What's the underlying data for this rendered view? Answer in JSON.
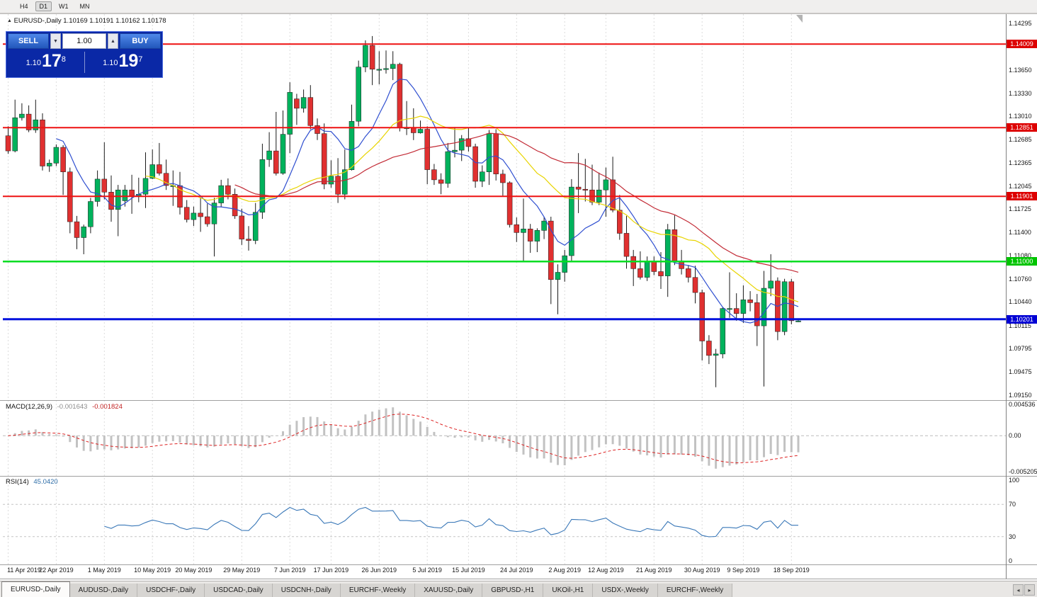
{
  "toolbar": {
    "timeframes": [
      {
        "label": "H4",
        "active": false
      },
      {
        "label": "D1",
        "active": true
      },
      {
        "label": "W1",
        "active": false
      },
      {
        "label": "MN",
        "active": false
      }
    ]
  },
  "chart_header": {
    "title": "EURUSD-,Daily",
    "ohlc": "1.10169 1.10191 1.10162 1.10178"
  },
  "trade_panel": {
    "sell_label": "SELL",
    "buy_label": "BUY",
    "volume": "1.00",
    "spin_down": "▼",
    "spin_up": "▲",
    "sell_price": {
      "prefix": "1.10",
      "big": "17",
      "sup": "8"
    },
    "buy_price": {
      "prefix": "1.10",
      "big": "19",
      "sup": "7"
    }
  },
  "price_axis": {
    "ticks": [
      "1.14295",
      "1.13650",
      "1.13330",
      "1.13010",
      "1.12685",
      "1.12365",
      "1.12045",
      "1.11725",
      "1.11400",
      "1.11080",
      "1.10760",
      "1.10440",
      "1.10115",
      "1.09795",
      "1.09475",
      "1.09150"
    ],
    "badges": [
      {
        "price": "1.14009",
        "color": "#dd0000"
      },
      {
        "price": "1.12851",
        "color": "#dd0000"
      },
      {
        "price": "1.11901",
        "color": "#dd0000"
      },
      {
        "price": "1.11000",
        "color": "#00c400"
      },
      {
        "price": "1.10201",
        "color": "#0000d4"
      }
    ]
  },
  "macd_panel": {
    "name": "MACD(12,26,9)",
    "value1": "-0.001643",
    "value2": "-0.001824",
    "axis": [
      "0.004536",
      "0.00",
      "-0.005205"
    ],
    "range": [
      -0.005205,
      0.004536
    ]
  },
  "rsi_panel": {
    "name": "RSI(14)",
    "value": "45.0420",
    "axis": [
      "100",
      "70",
      "30",
      "0"
    ],
    "levels": [
      70,
      30
    ]
  },
  "tabs": [
    {
      "label": "EURUSD-,Daily",
      "active": true
    },
    {
      "label": "AUDUSD-,Daily",
      "active": false
    },
    {
      "label": "USDCHF-,Daily",
      "active": false
    },
    {
      "label": "USDCAD-,Daily",
      "active": false
    },
    {
      "label": "USDCNH-,Daily",
      "active": false
    },
    {
      "label": "EURCHF-,Weekly",
      "active": false
    },
    {
      "label": "XAUUSD-,Daily",
      "active": false
    },
    {
      "label": "GBPUSD-,H1",
      "active": false
    },
    {
      "label": "UKOil-,H1",
      "active": false
    },
    {
      "label": "USDX-,Weekly",
      "active": false
    },
    {
      "label": "EURCHF-,Weekly",
      "active": false
    }
  ],
  "chart_data": {
    "type": "candlestick",
    "symbol": "EURUSD-",
    "timeframe": "Daily",
    "ylim": [
      1.0915,
      1.14295
    ],
    "colors": {
      "bull": "#00b25c",
      "bear": "#e03030",
      "wick": "#1a1a1a",
      "macd_bar": "#c2c2c2",
      "macd_signal": "#dd2222",
      "rsi_line": "#3a78b8"
    },
    "hlines": [
      {
        "price": 1.14009,
        "color": "#ee1111",
        "width": 2
      },
      {
        "price": 1.12851,
        "color": "#ee1111",
        "width": 2
      },
      {
        "price": 1.11901,
        "color": "#ee1111",
        "width": 2
      },
      {
        "price": 1.11,
        "color": "#00dd22",
        "width": 2.5
      },
      {
        "price": 1.10201,
        "color": "#0011dd",
        "width": 3
      }
    ],
    "moving_averages": [
      {
        "period": 8,
        "color": "#2f4fd0"
      },
      {
        "period": 21,
        "color": "#e8d400"
      },
      {
        "period": 34,
        "color": "#c22a35"
      }
    ],
    "xlabels": [
      {
        "index": 0,
        "label": "11 Apr 2019"
      },
      {
        "index": 7,
        "label": "22 Apr 2019"
      },
      {
        "index": 14,
        "label": "1 May 2019"
      },
      {
        "index": 21,
        "label": "10 May 2019"
      },
      {
        "index": 27,
        "label": "20 May 2019"
      },
      {
        "index": 34,
        "label": "29 May 2019"
      },
      {
        "index": 41,
        "label": "7 Jun 2019"
      },
      {
        "index": 47,
        "label": "17 Jun 2019"
      },
      {
        "index": 54,
        "label": "26 Jun 2019"
      },
      {
        "index": 61,
        "label": "5 Jul 2019"
      },
      {
        "index": 67,
        "label": "15 Jul 2019"
      },
      {
        "index": 74,
        "label": "24 Jul 2019"
      },
      {
        "index": 81,
        "label": "2 Aug 2019"
      },
      {
        "index": 87,
        "label": "12 Aug 2019"
      },
      {
        "index": 94,
        "label": "21 Aug 2019"
      },
      {
        "index": 101,
        "label": "30 Aug 2019"
      },
      {
        "index": 107,
        "label": "9 Sep 2019"
      },
      {
        "index": 114,
        "label": "18 Sep 2019"
      }
    ],
    "candles": [
      [
        1.1274,
        1.1287,
        1.1249,
        1.1253
      ],
      [
        1.1253,
        1.1324,
        1.1251,
        1.1299
      ],
      [
        1.1299,
        1.1319,
        1.1295,
        1.1304
      ],
      [
        1.1304,
        1.1316,
        1.1279,
        1.1282
      ],
      [
        1.1282,
        1.1324,
        1.1278,
        1.1296
      ],
      [
        1.1296,
        1.1305,
        1.1226,
        1.1232
      ],
      [
        1.1232,
        1.1241,
        1.1224,
        1.1236
      ],
      [
        1.1236,
        1.1262,
        1.1232,
        1.1258
      ],
      [
        1.1258,
        1.1261,
        1.1192,
        1.1224
      ],
      [
        1.1224,
        1.123,
        1.1139,
        1.1155
      ],
      [
        1.1155,
        1.1163,
        1.1117,
        1.1133
      ],
      [
        1.1133,
        1.1151,
        1.111,
        1.1148
      ],
      [
        1.1148,
        1.1188,
        1.1139,
        1.1183
      ],
      [
        1.1183,
        1.1226,
        1.1176,
        1.1214
      ],
      [
        1.1214,
        1.1265,
        1.1186,
        1.1196
      ],
      [
        1.1196,
        1.1219,
        1.1155,
        1.1172
      ],
      [
        1.1172,
        1.1206,
        1.1135,
        1.1199
      ],
      [
        1.1184,
        1.1206,
        1.1176,
        1.1199
      ],
      [
        1.1199,
        1.122,
        1.1166,
        1.119
      ],
      [
        1.119,
        1.1216,
        1.1182,
        1.1193
      ],
      [
        1.1193,
        1.1251,
        1.1174,
        1.1215
      ],
      [
        1.1215,
        1.1255,
        1.1214,
        1.1234
      ],
      [
        1.1234,
        1.1264,
        1.1219,
        1.1222
      ],
      [
        1.1222,
        1.1241,
        1.1199,
        1.1205
      ],
      [
        1.1205,
        1.1226,
        1.1177,
        1.1205
      ],
      [
        1.1205,
        1.1224,
        1.1165,
        1.1175
      ],
      [
        1.1175,
        1.1185,
        1.1154,
        1.1158
      ],
      [
        1.1158,
        1.1176,
        1.1149,
        1.1167
      ],
      [
        1.1167,
        1.1189,
        1.1141,
        1.1162
      ],
      [
        1.1162,
        1.118,
        1.1148,
        1.1152
      ],
      [
        1.1152,
        1.1188,
        1.1107,
        1.1181
      ],
      [
        1.1181,
        1.1213,
        1.1175,
        1.1205
      ],
      [
        1.1205,
        1.1215,
        1.1186,
        1.1193
      ],
      [
        1.1193,
        1.1201,
        1.1159,
        1.1163
      ],
      [
        1.1163,
        1.1173,
        1.1123,
        1.1131
      ],
      [
        1.1131,
        1.1149,
        1.1115,
        1.1129
      ],
      [
        1.1129,
        1.1181,
        1.1124,
        1.1168
      ],
      [
        1.1168,
        1.1263,
        1.1159,
        1.1241
      ],
      [
        1.1241,
        1.1279,
        1.1231,
        1.1253
      ],
      [
        1.1253,
        1.1307,
        1.1219,
        1.1222
      ],
      [
        1.1222,
        1.1309,
        1.122,
        1.1276
      ],
      [
        1.1276,
        1.1348,
        1.125,
        1.1334
      ],
      [
        1.1325,
        1.1332,
        1.1289,
        1.1312
      ],
      [
        1.1312,
        1.1338,
        1.1306,
        1.1327
      ],
      [
        1.1327,
        1.1344,
        1.1283,
        1.1288
      ],
      [
        1.1288,
        1.1298,
        1.1268,
        1.1277
      ],
      [
        1.1277,
        1.1291,
        1.12,
        1.1207
      ],
      [
        1.1207,
        1.124,
        1.1202,
        1.1218
      ],
      [
        1.1218,
        1.1243,
        1.1181,
        1.1193
      ],
      [
        1.1193,
        1.1255,
        1.1186,
        1.1227
      ],
      [
        1.1227,
        1.1317,
        1.1226,
        1.1294
      ],
      [
        1.1294,
        1.1378,
        1.1287,
        1.1369
      ],
      [
        1.1369,
        1.1406,
        1.1362,
        1.1399
      ],
      [
        1.1399,
        1.1412,
        1.1344,
        1.1366
      ],
      [
        1.1366,
        1.1391,
        1.1345,
        1.1366
      ],
      [
        1.1366,
        1.1392,
        1.136,
        1.1367
      ],
      [
        1.1367,
        1.1391,
        1.1351,
        1.1373
      ],
      [
        1.1373,
        1.1375,
        1.128,
        1.1285
      ],
      [
        1.1285,
        1.1322,
        1.1275,
        1.1285
      ],
      [
        1.1285,
        1.1312,
        1.1268,
        1.1278
      ],
      [
        1.1278,
        1.1295,
        1.1277,
        1.1283
      ],
      [
        1.1283,
        1.1287,
        1.1207,
        1.1227
      ],
      [
        1.1227,
        1.1235,
        1.1206,
        1.1213
      ],
      [
        1.1213,
        1.1222,
        1.1193,
        1.1208
      ],
      [
        1.1208,
        1.1264,
        1.1202,
        1.1252
      ],
      [
        1.1252,
        1.1286,
        1.1244,
        1.1254
      ],
      [
        1.1254,
        1.1275,
        1.1239,
        1.127
      ],
      [
        1.127,
        1.1285,
        1.1252,
        1.1259
      ],
      [
        1.1259,
        1.1263,
        1.1202,
        1.1211
      ],
      [
        1.1211,
        1.1233,
        1.1203,
        1.1224
      ],
      [
        1.1224,
        1.1282,
        1.1206,
        1.1277
      ],
      [
        1.1277,
        1.1283,
        1.1212,
        1.1221
      ],
      [
        1.1221,
        1.1227,
        1.1191,
        1.1209
      ],
      [
        1.1209,
        1.1211,
        1.1147,
        1.1151
      ],
      [
        1.1151,
        1.1161,
        1.1127,
        1.114
      ],
      [
        1.114,
        1.1187,
        1.1101,
        1.1145
      ],
      [
        1.1145,
        1.1152,
        1.1112,
        1.1128
      ],
      [
        1.1128,
        1.1146,
        1.1113,
        1.1143
      ],
      [
        1.1143,
        1.1162,
        1.1131,
        1.1156
      ],
      [
        1.1156,
        1.1162,
        1.1041,
        1.1075
      ],
      [
        1.1075,
        1.1096,
        1.1027,
        1.1085
      ],
      [
        1.1085,
        1.1116,
        1.1072,
        1.1108
      ],
      [
        1.1108,
        1.1214,
        1.1101,
        1.1203
      ],
      [
        1.1203,
        1.125,
        1.1167,
        1.12
      ],
      [
        1.12,
        1.1242,
        1.1183,
        1.1199
      ],
      [
        1.1199,
        1.1234,
        1.1178,
        1.1182
      ],
      [
        1.1182,
        1.1223,
        1.1178,
        1.1199
      ],
      [
        1.1199,
        1.123,
        1.1162,
        1.1213
      ],
      [
        1.1213,
        1.1245,
        1.1168,
        1.1171
      ],
      [
        1.1171,
        1.1192,
        1.113,
        1.1139
      ],
      [
        1.1139,
        1.1163,
        1.109,
        1.1107
      ],
      [
        1.1107,
        1.1116,
        1.1066,
        1.109
      ],
      [
        1.109,
        1.1114,
        1.1075,
        1.1078
      ],
      [
        1.1078,
        1.1107,
        1.1073,
        1.1099
      ],
      [
        1.1099,
        1.1107,
        1.1081,
        1.1086
      ],
      [
        1.1086,
        1.1113,
        1.1062,
        1.108
      ],
      [
        1.108,
        1.1152,
        1.1051,
        1.1144
      ],
      [
        1.1144,
        1.1164,
        1.1095,
        1.1101
      ],
      [
        1.1101,
        1.1116,
        1.1082,
        1.109
      ],
      [
        1.109,
        1.1095,
        1.1071,
        1.1078
      ],
      [
        1.1078,
        1.1094,
        1.1042,
        1.1057
      ],
      [
        1.1057,
        1.1061,
        1.0963,
        1.099
      ],
      [
        1.099,
        1.0998,
        1.0958,
        1.097
      ],
      [
        1.097,
        1.0979,
        1.0926,
        1.0972
      ],
      [
        1.0972,
        1.1037,
        1.0966,
        1.1035
      ],
      [
        1.1035,
        1.1085,
        1.1022,
        1.1035
      ],
      [
        1.1035,
        1.1056,
        1.1018,
        1.1028
      ],
      [
        1.1028,
        1.1067,
        1.1015,
        1.1047
      ],
      [
        1.1047,
        1.1059,
        1.1031,
        1.1043
      ],
      [
        1.1043,
        1.1055,
        1.0983,
        1.1011
      ],
      [
        1.1011,
        1.1087,
        1.0927,
        1.1063
      ],
      [
        1.1063,
        1.111,
        1.1052,
        1.1073
      ],
      [
        1.1073,
        1.1078,
        1.0991,
        1.1003
      ],
      [
        1.1003,
        1.1076,
        1.0998,
        1.1072
      ],
      [
        1.1072,
        1.1076,
        1.1013,
        1.1018
      ],
      [
        1.10169,
        1.10191,
        1.10162,
        1.10178
      ]
    ],
    "indicators": {
      "macd": {
        "params": [
          12,
          26,
          9
        ],
        "current": [
          -0.001643,
          -0.001824
        ]
      },
      "rsi": {
        "params": [
          14
        ],
        "current": 45.042
      }
    }
  }
}
